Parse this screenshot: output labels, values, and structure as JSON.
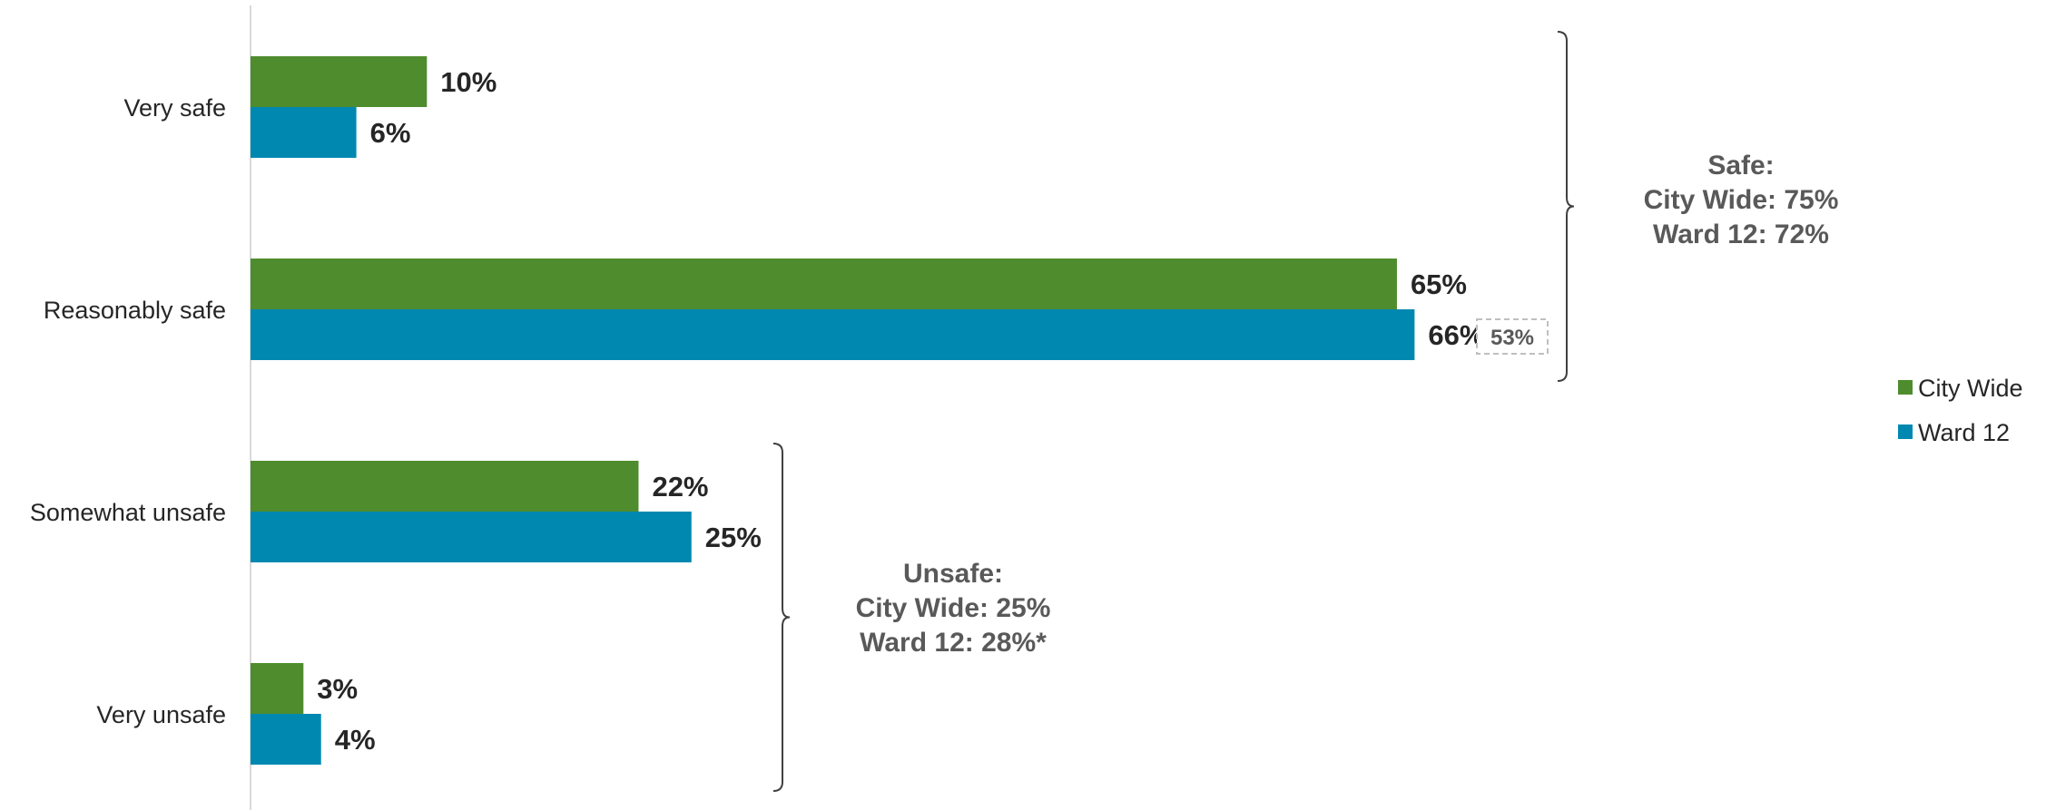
{
  "chart_data": {
    "type": "bar",
    "orientation": "horizontal",
    "categories": [
      "Very safe",
      "Reasonably safe",
      "Somewhat unsafe",
      "Very unsafe"
    ],
    "series": [
      {
        "name": "City Wide",
        "values": [
          10,
          65,
          22,
          3
        ],
        "labels": [
          "10%",
          "65%",
          "22%",
          "3%"
        ]
      },
      {
        "name": "Ward 12",
        "values": [
          6,
          66,
          25,
          4
        ],
        "labels": [
          "6%",
          "66%",
          "25%",
          "4%"
        ]
      }
    ],
    "xlim": [
      0,
      100
    ],
    "grid": false,
    "legend": "right",
    "colors": {
      "City Wide": "#4e8c2e",
      "Ward 12": "#0088b0"
    },
    "comparison_annotation": {
      "category": "Reasonably safe",
      "series": "Ward 12",
      "value": 53,
      "label": "53%"
    },
    "groups": [
      {
        "categories": [
          "Very safe",
          "Reasonably safe"
        ],
        "lines": [
          "Safe:",
          "City Wide: 75%",
          "Ward 12: 72%"
        ]
      },
      {
        "categories": [
          "Somewhat unsafe",
          "Very unsafe"
        ],
        "lines": [
          "Unsafe:",
          "City Wide: 25%",
          "Ward 12: 28%*"
        ]
      }
    ]
  }
}
